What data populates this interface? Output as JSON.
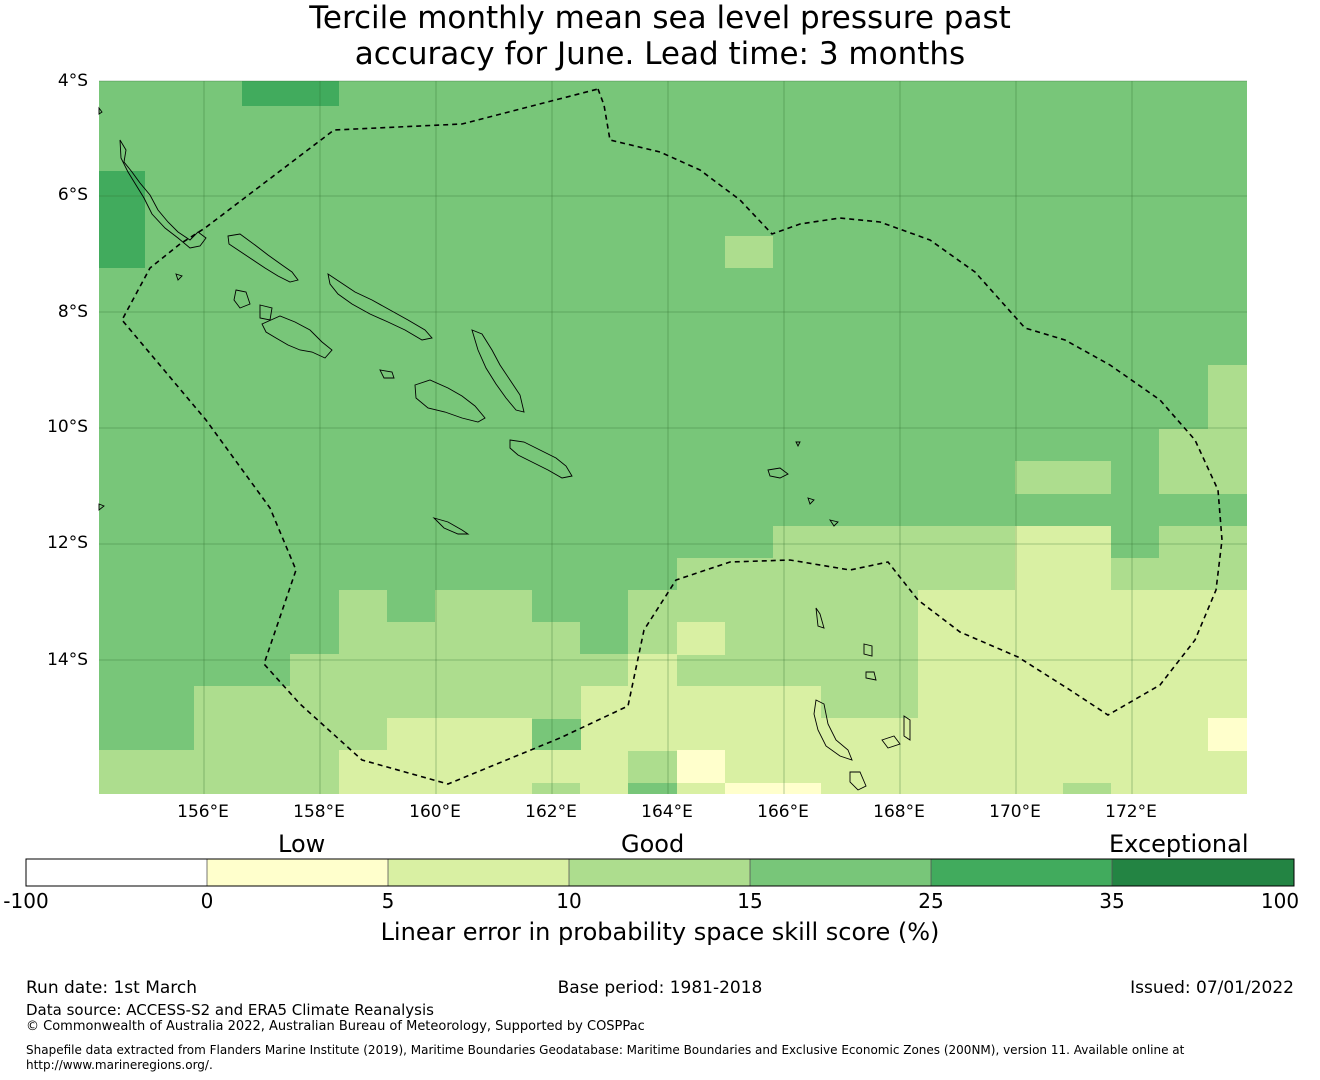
{
  "title": {
    "line1": "Tercile monthly mean sea level pressure past",
    "line2": "accuracy for June. Lead time: 3 months"
  },
  "map": {
    "lat_labels": [
      "4°S",
      "6°S",
      "8°S",
      "10°S",
      "12°S",
      "14°S"
    ],
    "lon_labels": [
      "156°E",
      "158°E",
      "160°E",
      "162°E",
      "164°E",
      "166°E",
      "168°E",
      "170°E",
      "172°E"
    ],
    "grid": true,
    "boundary_style": "dashed"
  },
  "legend": {
    "categories": [
      "Low",
      "Good",
      "Exceptional"
    ],
    "ticks": [
      "-100",
      "0",
      "5",
      "10",
      "15",
      "25",
      "35",
      "100"
    ],
    "colors": [
      "#ffffff",
      "#ffffcc",
      "#d9f0a3",
      "#addd8e",
      "#78c679",
      "#41ab5d",
      "#238443"
    ],
    "title": "Linear error in probability space skill score (%)"
  },
  "footer": {
    "run_date": "Run date: 1st March",
    "base_period": "Base period: 1981-2018",
    "issued": "Issued: 07/01/2022",
    "data_source": "Data source: ACCESS-S2 and ERA5 Climate Reanalysis",
    "copyright": "© Commonwealth of Australia 2022, Australian Bureau of Meteorology, Supported by COSPPac",
    "shapefile_line1": "Shapefile data extracted from Flanders Marine Institute (2019), Maritime Boundaries Geodatabase: Maritime Boundaries and Exclusive Economic Zones (200NM), version 11. Available online at",
    "shapefile_line2": "http://www.marineregions.org/."
  }
}
